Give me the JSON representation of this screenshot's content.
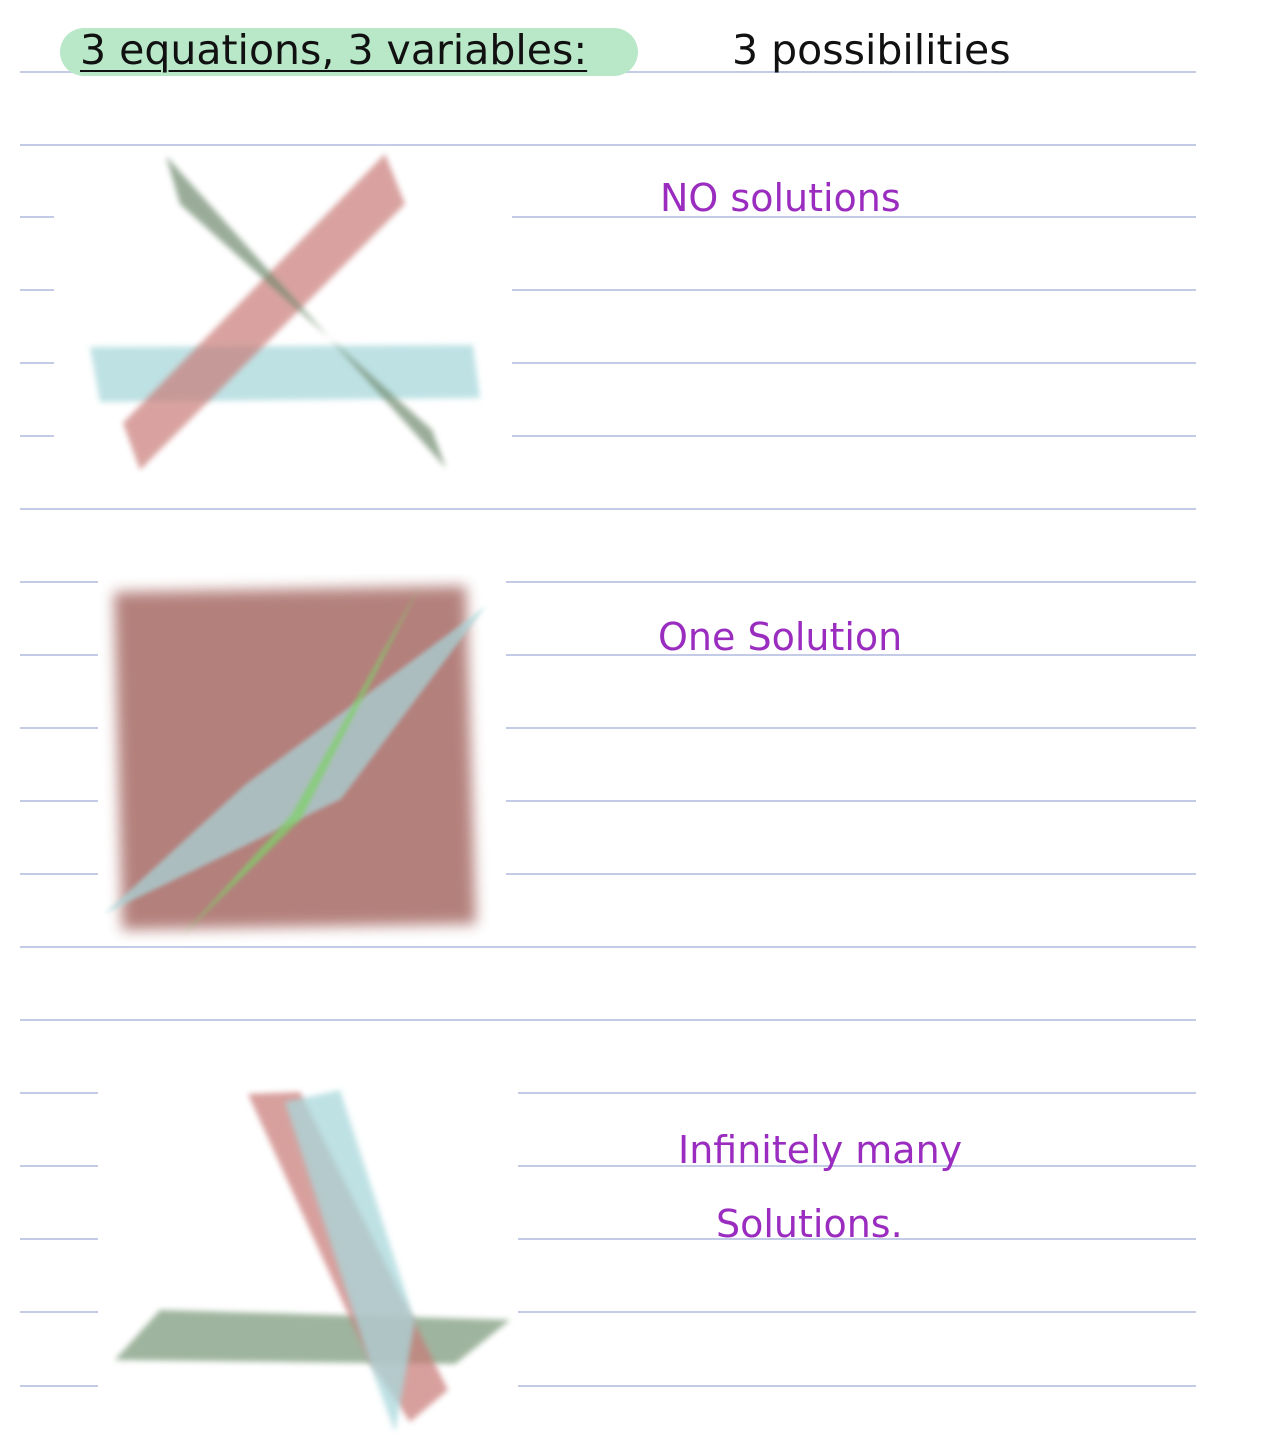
{
  "header": {
    "title": "3 equations, 3 variables:",
    "subtitle": "3 possibilities"
  },
  "cases": [
    {
      "label_lines": [
        "NO solutions"
      ]
    },
    {
      "label_lines": [
        "One Solution"
      ]
    },
    {
      "label_lines": [
        "Infinitely many",
        "Solutions."
      ]
    }
  ],
  "colors": {
    "highlight": "#b8e8c8",
    "ink": "#111111",
    "purple_ink": "#9a2cc0",
    "rule_line": "#c3cbe6",
    "plane_red": "#c97b78",
    "plane_blue": "#a9d8dc",
    "plane_green_dark": "#7f9c7e",
    "plane_green_bright": "#7fd06a",
    "plane_maroon": "#b07a76"
  }
}
